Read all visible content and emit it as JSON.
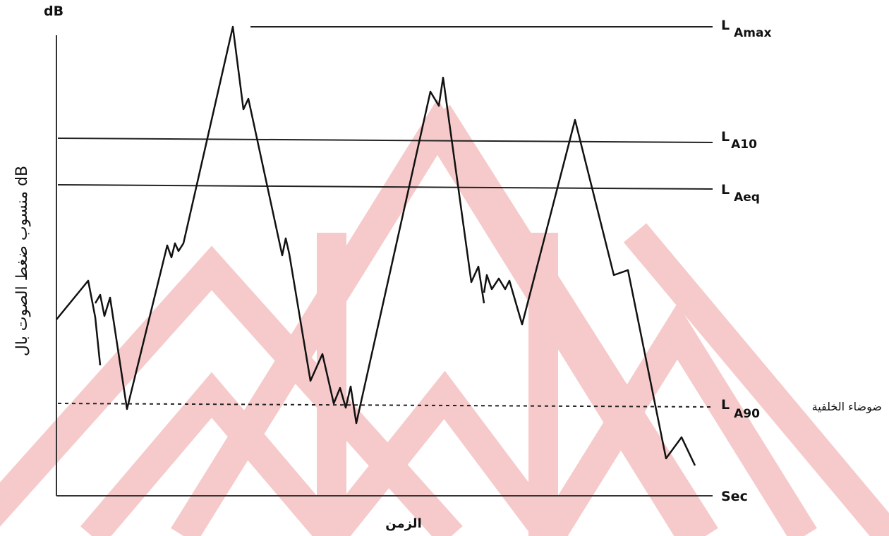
{
  "axis": {
    "y_unit": "dB",
    "x_unit": "Sec",
    "x_label": "الزمن",
    "y_label": "منسوب ضغط الصوت بال dB"
  },
  "levels": [
    {
      "letter": "L",
      "sub": "Amax"
    },
    {
      "letter": "L",
      "sub": "A10"
    },
    {
      "letter": "L",
      "sub": "Aeq"
    },
    {
      "letter": "L",
      "sub": "A90"
    }
  ],
  "background_noise": "ضوضاء الخلفية"
}
